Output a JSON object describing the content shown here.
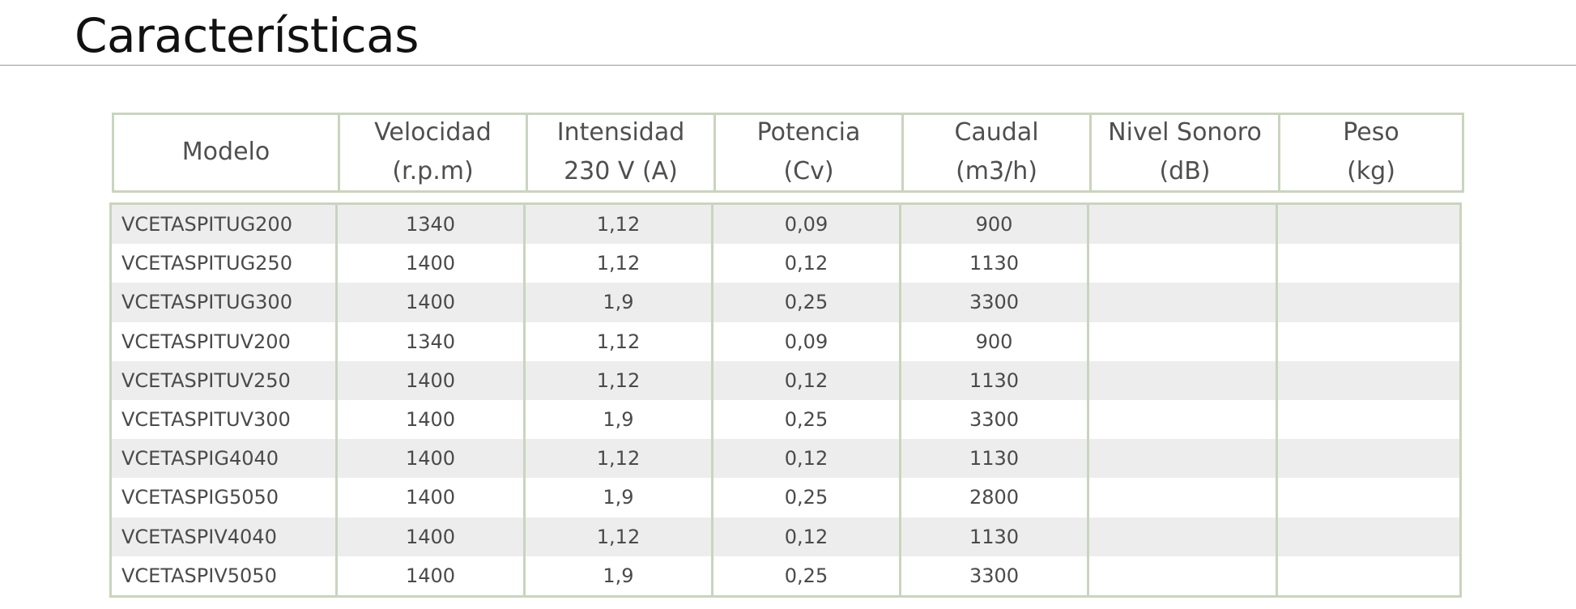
{
  "page": {
    "title": "Características"
  },
  "table": {
    "headers": [
      {
        "line1": "Modelo",
        "line2": ""
      },
      {
        "line1": "Velocidad",
        "line2": "(r.p.m)"
      },
      {
        "line1": "Intensidad",
        "line2": "230 V (A)"
      },
      {
        "line1": "Potencia",
        "line2": "(Cv)"
      },
      {
        "line1": "Caudal",
        "line2": "(m3/h)"
      },
      {
        "line1": "Nivel Sonoro",
        "line2": "(dB)"
      },
      {
        "line1": "Peso",
        "line2": "(kg)"
      }
    ],
    "rows": [
      [
        "VCETASPITUG200",
        "1340",
        "1,12",
        "0,09",
        "900",
        "",
        ""
      ],
      [
        "VCETASPITUG250",
        "1400",
        "1,12",
        "0,12",
        "1130",
        "",
        ""
      ],
      [
        "VCETASPITUG300",
        "1400",
        "1,9",
        "0,25",
        "3300",
        "",
        ""
      ],
      [
        "VCETASPITUV200",
        "1340",
        "1,12",
        "0,09",
        "900",
        "",
        ""
      ],
      [
        "VCETASPITUV250",
        "1400",
        "1,12",
        "0,12",
        "1130",
        "",
        ""
      ],
      [
        "VCETASPITUV300",
        "1400",
        "1,9",
        "0,25",
        "3300",
        "",
        ""
      ],
      [
        "VCETASPIG4040",
        "1400",
        "1,12",
        "0,12",
        "1130",
        "",
        ""
      ],
      [
        "VCETASPIG5050",
        "1400",
        "1,9",
        "0,25",
        "2800",
        "",
        ""
      ],
      [
        "VCETASPIV4040",
        "1400",
        "1,12",
        "0,12",
        "1130",
        "",
        ""
      ],
      [
        "VCETASPIV5050",
        "1400",
        "1,9",
        "0,25",
        "3300",
        "",
        ""
      ]
    ]
  },
  "colors": {
    "border": "#c9d5be",
    "shaded_row": "#ededee"
  }
}
